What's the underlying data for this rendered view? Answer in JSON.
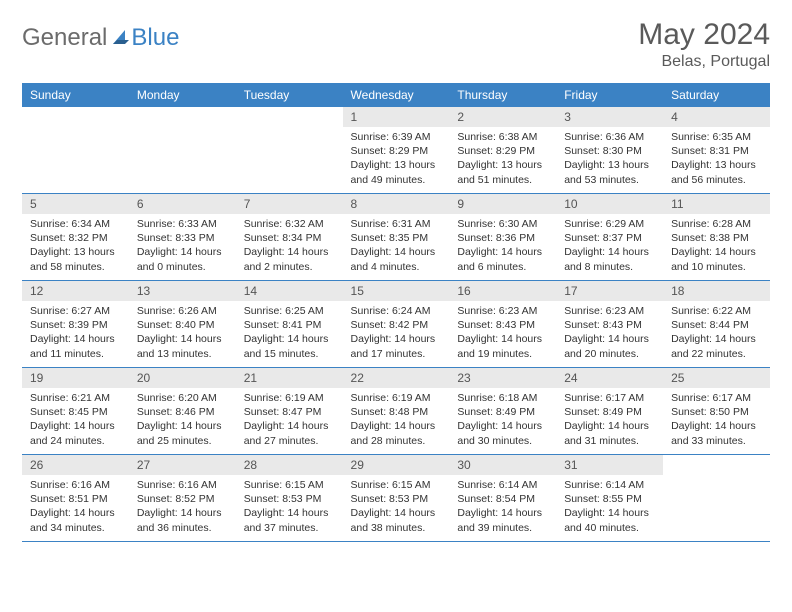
{
  "brand": {
    "word1": "General",
    "word2": "Blue",
    "gray_color": "#6b6b6b",
    "blue_color": "#3b82c4"
  },
  "title": "May 2024",
  "location": "Belas, Portugal",
  "header_bg": "#3b82c4",
  "header_fg": "#ffffff",
  "daynum_bg": "#e9e9e9",
  "border_color": "#3b82c4",
  "weekdays": [
    "Sunday",
    "Monday",
    "Tuesday",
    "Wednesday",
    "Thursday",
    "Friday",
    "Saturday"
  ],
  "weeks": [
    [
      null,
      null,
      null,
      {
        "n": "1",
        "sr": "6:39 AM",
        "ss": "8:29 PM",
        "dl": "13 hours and 49 minutes."
      },
      {
        "n": "2",
        "sr": "6:38 AM",
        "ss": "8:29 PM",
        "dl": "13 hours and 51 minutes."
      },
      {
        "n": "3",
        "sr": "6:36 AM",
        "ss": "8:30 PM",
        "dl": "13 hours and 53 minutes."
      },
      {
        "n": "4",
        "sr": "6:35 AM",
        "ss": "8:31 PM",
        "dl": "13 hours and 56 minutes."
      }
    ],
    [
      {
        "n": "5",
        "sr": "6:34 AM",
        "ss": "8:32 PM",
        "dl": "13 hours and 58 minutes."
      },
      {
        "n": "6",
        "sr": "6:33 AM",
        "ss": "8:33 PM",
        "dl": "14 hours and 0 minutes."
      },
      {
        "n": "7",
        "sr": "6:32 AM",
        "ss": "8:34 PM",
        "dl": "14 hours and 2 minutes."
      },
      {
        "n": "8",
        "sr": "6:31 AM",
        "ss": "8:35 PM",
        "dl": "14 hours and 4 minutes."
      },
      {
        "n": "9",
        "sr": "6:30 AM",
        "ss": "8:36 PM",
        "dl": "14 hours and 6 minutes."
      },
      {
        "n": "10",
        "sr": "6:29 AM",
        "ss": "8:37 PM",
        "dl": "14 hours and 8 minutes."
      },
      {
        "n": "11",
        "sr": "6:28 AM",
        "ss": "8:38 PM",
        "dl": "14 hours and 10 minutes."
      }
    ],
    [
      {
        "n": "12",
        "sr": "6:27 AM",
        "ss": "8:39 PM",
        "dl": "14 hours and 11 minutes."
      },
      {
        "n": "13",
        "sr": "6:26 AM",
        "ss": "8:40 PM",
        "dl": "14 hours and 13 minutes."
      },
      {
        "n": "14",
        "sr": "6:25 AM",
        "ss": "8:41 PM",
        "dl": "14 hours and 15 minutes."
      },
      {
        "n": "15",
        "sr": "6:24 AM",
        "ss": "8:42 PM",
        "dl": "14 hours and 17 minutes."
      },
      {
        "n": "16",
        "sr": "6:23 AM",
        "ss": "8:43 PM",
        "dl": "14 hours and 19 minutes."
      },
      {
        "n": "17",
        "sr": "6:23 AM",
        "ss": "8:43 PM",
        "dl": "14 hours and 20 minutes."
      },
      {
        "n": "18",
        "sr": "6:22 AM",
        "ss": "8:44 PM",
        "dl": "14 hours and 22 minutes."
      }
    ],
    [
      {
        "n": "19",
        "sr": "6:21 AM",
        "ss": "8:45 PM",
        "dl": "14 hours and 24 minutes."
      },
      {
        "n": "20",
        "sr": "6:20 AM",
        "ss": "8:46 PM",
        "dl": "14 hours and 25 minutes."
      },
      {
        "n": "21",
        "sr": "6:19 AM",
        "ss": "8:47 PM",
        "dl": "14 hours and 27 minutes."
      },
      {
        "n": "22",
        "sr": "6:19 AM",
        "ss": "8:48 PM",
        "dl": "14 hours and 28 minutes."
      },
      {
        "n": "23",
        "sr": "6:18 AM",
        "ss": "8:49 PM",
        "dl": "14 hours and 30 minutes."
      },
      {
        "n": "24",
        "sr": "6:17 AM",
        "ss": "8:49 PM",
        "dl": "14 hours and 31 minutes."
      },
      {
        "n": "25",
        "sr": "6:17 AM",
        "ss": "8:50 PM",
        "dl": "14 hours and 33 minutes."
      }
    ],
    [
      {
        "n": "26",
        "sr": "6:16 AM",
        "ss": "8:51 PM",
        "dl": "14 hours and 34 minutes."
      },
      {
        "n": "27",
        "sr": "6:16 AM",
        "ss": "8:52 PM",
        "dl": "14 hours and 36 minutes."
      },
      {
        "n": "28",
        "sr": "6:15 AM",
        "ss": "8:53 PM",
        "dl": "14 hours and 37 minutes."
      },
      {
        "n": "29",
        "sr": "6:15 AM",
        "ss": "8:53 PM",
        "dl": "14 hours and 38 minutes."
      },
      {
        "n": "30",
        "sr": "6:14 AM",
        "ss": "8:54 PM",
        "dl": "14 hours and 39 minutes."
      },
      {
        "n": "31",
        "sr": "6:14 AM",
        "ss": "8:55 PM",
        "dl": "14 hours and 40 minutes."
      },
      null
    ]
  ],
  "labels": {
    "sunrise": "Sunrise: ",
    "sunset": "Sunset: ",
    "daylight": "Daylight: "
  }
}
